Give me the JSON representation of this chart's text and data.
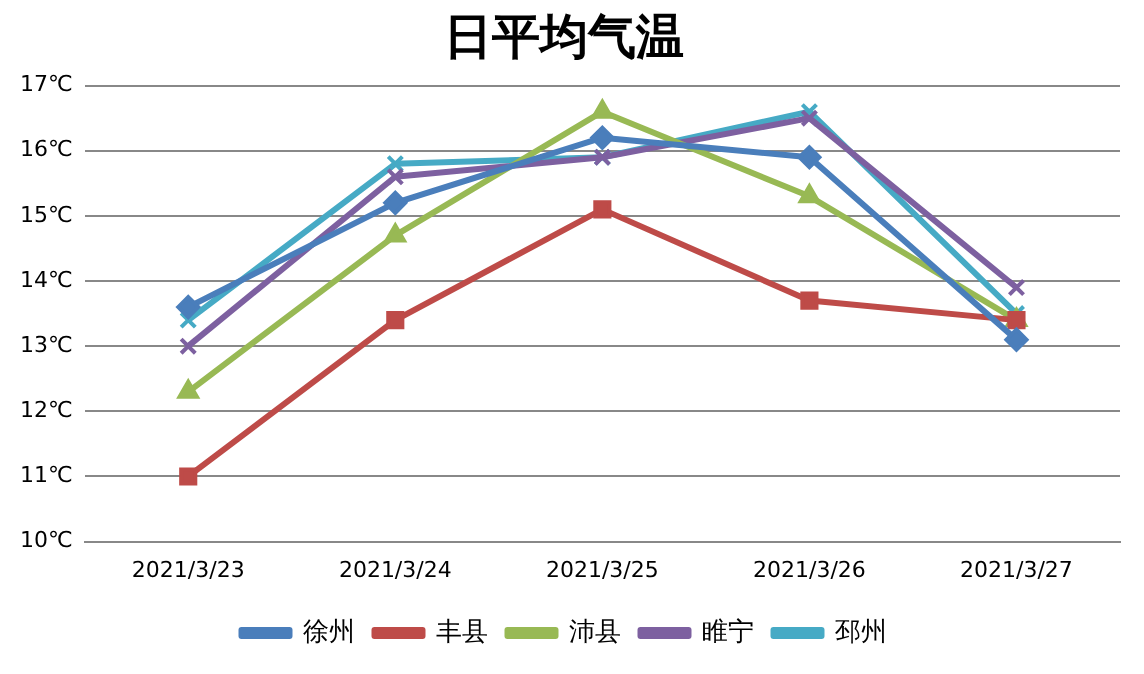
{
  "chart_data": {
    "type": "line",
    "title": "日平均气温",
    "categories": [
      "2021/3/23",
      "2021/3/24",
      "2021/3/25",
      "2021/3/26",
      "2021/3/27"
    ],
    "series": [
      {
        "name": "徐州",
        "color": "#4a7ebb",
        "marker": "diamond",
        "values": [
          13.6,
          15.2,
          16.2,
          15.9,
          13.1
        ]
      },
      {
        "name": "丰县",
        "color": "#be4b48",
        "marker": "square",
        "values": [
          11.0,
          13.4,
          15.1,
          13.7,
          13.4
        ]
      },
      {
        "name": "沛县",
        "color": "#98b954",
        "marker": "triangle",
        "values": [
          12.3,
          14.7,
          16.6,
          15.3,
          13.4
        ]
      },
      {
        "name": "睢宁",
        "color": "#7d60a0",
        "marker": "cross",
        "values": [
          13.0,
          15.6,
          15.9,
          16.5,
          13.9
        ]
      },
      {
        "name": "邳州",
        "color": "#46aac5",
        "marker": "cross",
        "values": [
          13.4,
          15.8,
          15.9,
          16.6,
          13.5
        ]
      }
    ],
    "ylim": [
      10,
      17
    ],
    "yticks": [
      {
        "value": 10,
        "label": "10℃"
      },
      {
        "value": 11,
        "label": "11℃"
      },
      {
        "value": 12,
        "label": "12℃"
      },
      {
        "value": 13,
        "label": "13℃"
      },
      {
        "value": 14,
        "label": "14℃"
      },
      {
        "value": 15,
        "label": "15℃"
      },
      {
        "value": 16,
        "label": "16℃"
      },
      {
        "value": 17,
        "label": "17℃"
      }
    ],
    "grid": "y",
    "legend": "bottom",
    "line_style": "solid"
  }
}
